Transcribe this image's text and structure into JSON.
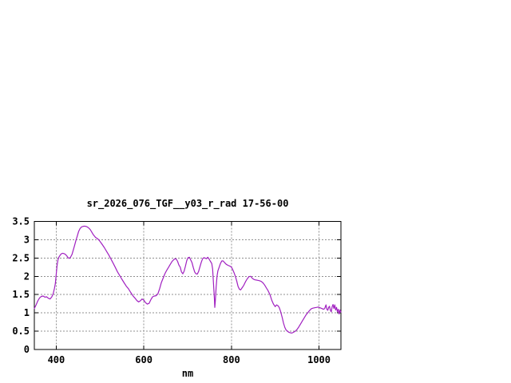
{
  "chart_data": {
    "type": "line",
    "title": "sr_2026_076_TGF__y03_r_rad 17-56-00",
    "xlabel": "nm",
    "ylabel": "",
    "xlim": [
      350,
      1050
    ],
    "ylim": [
      0,
      3.5
    ],
    "x_ticks": [
      400,
      600,
      800,
      1000
    ],
    "y_ticks": [
      0,
      0.5,
      1,
      1.5,
      2,
      2.5,
      3,
      3.5
    ],
    "grid": true,
    "legend_position": "none",
    "line_color": "#A020C0",
    "axis_color": "#000000",
    "grid_color": "#909090",
    "background_color": "#ffffff",
    "series": [
      {
        "x": [
          350,
          354,
          358,
          362,
          366,
          370,
          374,
          378,
          382,
          386,
          390,
          393,
          396,
          398,
          400,
          402,
          404,
          406,
          409,
          412,
          415,
          418,
          421,
          424,
          427,
          430,
          433,
          436,
          439,
          442,
          445,
          448,
          451,
          454,
          457,
          460,
          463,
          466,
          469,
          472,
          475,
          478,
          481,
          484,
          487,
          490,
          493,
          496,
          499,
          502,
          505,
          510,
          515,
          520,
          525,
          530,
          535,
          540,
          545,
          550,
          555,
          560,
          565,
          570,
          575,
          580,
          584,
          588,
          592,
          596,
          600,
          604,
          608,
          612,
          616,
          620,
          624,
          628,
          632,
          636,
          640,
          644,
          648,
          652,
          656,
          660,
          664,
          668,
          671,
          674,
          677,
          680,
          683,
          686,
          689,
          692,
          695,
          698,
          701,
          704,
          707,
          710,
          713,
          716,
          719,
          722,
          725,
          728,
          731,
          734,
          737,
          740,
          743,
          746,
          749,
          752,
          755,
          757,
          759,
          761,
          762,
          763,
          765,
          767,
          769,
          772,
          775,
          778,
          781,
          784,
          788,
          792,
          796,
          800,
          803,
          806,
          809,
          812,
          815,
          818,
          821,
          824,
          828,
          832,
          836,
          840,
          844,
          848,
          852,
          856,
          860,
          864,
          868,
          872,
          876,
          880,
          884,
          888,
          892,
          896,
          900,
          903,
          906,
          909,
          912,
          916,
          919,
          922,
          925,
          928,
          931,
          934,
          937,
          940,
          943,
          946,
          950,
          954,
          958,
          962,
          966,
          970,
          974,
          978,
          982,
          986,
          990,
          994,
          998,
          1002,
          1006,
          1010,
          1013,
          1016,
          1018,
          1020,
          1022,
          1024,
          1026,
          1028,
          1030,
          1032,
          1034,
          1036,
          1038,
          1040,
          1042,
          1044,
          1046,
          1048,
          1050
        ],
        "y": [
          1.12,
          1.22,
          1.33,
          1.41,
          1.45,
          1.46,
          1.43,
          1.44,
          1.4,
          1.38,
          1.44,
          1.52,
          1.67,
          1.8,
          2.05,
          2.3,
          2.45,
          2.52,
          2.58,
          2.62,
          2.63,
          2.62,
          2.6,
          2.56,
          2.51,
          2.49,
          2.53,
          2.6,
          2.72,
          2.85,
          2.98,
          3.1,
          3.22,
          3.3,
          3.34,
          3.36,
          3.37,
          3.37,
          3.36,
          3.34,
          3.31,
          3.27,
          3.21,
          3.15,
          3.1,
          3.06,
          3.04,
          3.01,
          2.97,
          2.92,
          2.87,
          2.78,
          2.68,
          2.58,
          2.47,
          2.36,
          2.24,
          2.12,
          2.02,
          1.92,
          1.82,
          1.73,
          1.66,
          1.56,
          1.47,
          1.4,
          1.34,
          1.3,
          1.33,
          1.38,
          1.35,
          1.28,
          1.24,
          1.26,
          1.36,
          1.44,
          1.46,
          1.47,
          1.52,
          1.66,
          1.83,
          1.95,
          2.07,
          2.16,
          2.24,
          2.32,
          2.4,
          2.45,
          2.48,
          2.47,
          2.41,
          2.31,
          2.25,
          2.12,
          2.07,
          2.14,
          2.28,
          2.43,
          2.51,
          2.52,
          2.45,
          2.37,
          2.24,
          2.12,
          2.07,
          2.06,
          2.13,
          2.26,
          2.38,
          2.48,
          2.51,
          2.5,
          2.48,
          2.52,
          2.47,
          2.41,
          2.35,
          2.2,
          1.8,
          1.4,
          1.15,
          1.3,
          1.7,
          2.0,
          2.15,
          2.25,
          2.35,
          2.42,
          2.42,
          2.38,
          2.33,
          2.3,
          2.28,
          2.25,
          2.18,
          2.1,
          2.0,
          1.88,
          1.73,
          1.65,
          1.63,
          1.68,
          1.75,
          1.85,
          1.93,
          1.99,
          2.0,
          1.94,
          1.91,
          1.9,
          1.89,
          1.88,
          1.86,
          1.82,
          1.76,
          1.68,
          1.6,
          1.5,
          1.35,
          1.24,
          1.17,
          1.22,
          1.2,
          1.15,
          1.05,
          0.87,
          0.72,
          0.6,
          0.53,
          0.5,
          0.47,
          0.46,
          0.45,
          0.46,
          0.48,
          0.5,
          0.55,
          0.62,
          0.7,
          0.78,
          0.86,
          0.94,
          1.0,
          1.06,
          1.11,
          1.13,
          1.14,
          1.15,
          1.16,
          1.14,
          1.12,
          1.1,
          1.12,
          1.22,
          1.1,
          1.07,
          1.15,
          1.18,
          1.07,
          1.03,
          1.17,
          1.23,
          1.12,
          1.22,
          1.08,
          1.15,
          1.03,
          1.1,
          0.97,
          1.08,
          1.02
        ]
      }
    ]
  }
}
